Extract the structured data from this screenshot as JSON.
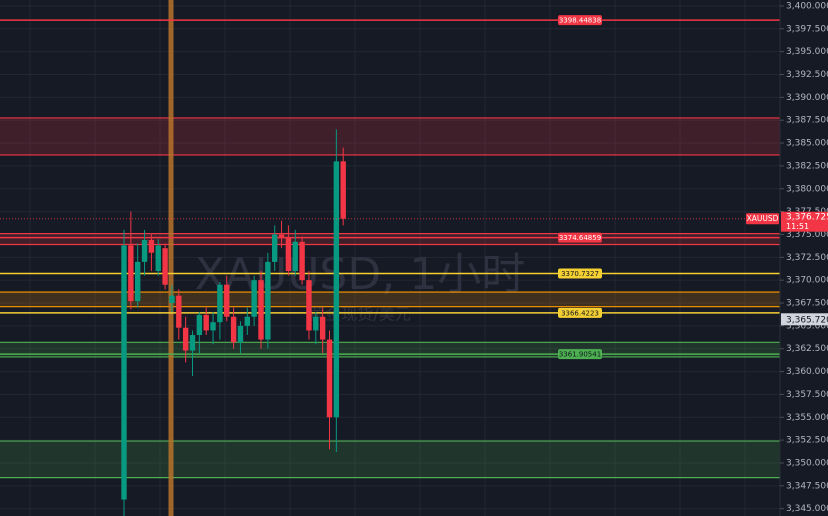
{
  "chart_data": {
    "type": "candlestick",
    "watermark": "XAUUSD, 1小时",
    "watermark_sub": "黄金现货/美元",
    "ylim": [
      3344.2,
      3400.65
    ],
    "yticks": [
      {
        "value": 3345,
        "label": "3,345.000"
      },
      {
        "value": 3347.5,
        "label": "3,347.500"
      },
      {
        "value": 3350,
        "label": "3,350.000"
      },
      {
        "value": 3352.5,
        "label": "3,352.500"
      },
      {
        "value": 3355,
        "label": "3,355.000"
      },
      {
        "value": 3357.5,
        "label": "3,357.500"
      },
      {
        "value": 3360,
        "label": "3,360.000"
      },
      {
        "value": 3362.5,
        "label": "3,362.500"
      },
      {
        "value": 3365,
        "label": "3,365.000"
      },
      {
        "value": 3367.5,
        "label": "3,367.500"
      },
      {
        "value": 3370,
        "label": "3,370.000"
      },
      {
        "value": 3372.5,
        "label": "3,372.500"
      },
      {
        "value": 3375,
        "label": "3,375.000"
      },
      {
        "value": 3377.5,
        "label": "3,377.500"
      },
      {
        "value": 3380,
        "label": "3,380.000"
      },
      {
        "value": 3382.5,
        "label": "3,382.500"
      },
      {
        "value": 3385,
        "label": "3,385.000"
      },
      {
        "value": 3387.5,
        "label": "3,387.500"
      },
      {
        "value": 3390,
        "label": "3,390.000"
      },
      {
        "value": 3392.5,
        "label": "3,392.500"
      },
      {
        "value": 3395,
        "label": "3,395.000"
      },
      {
        "value": 3397.5,
        "label": "3,397.500"
      },
      {
        "value": 3400,
        "label": "3,400.000"
      }
    ],
    "grid": true,
    "up_color": "#089981",
    "down_color": "#f23645",
    "open": [
      3346,
      3373.8,
      3367.7,
      3372,
      3374.4,
      3371,
      3373.5,
      3367.5,
      3368.3,
      3364.8,
      3362.3,
      3364,
      3366.2,
      3364.5,
      3365.4,
      3369.5,
      3366,
      3363.2,
      3365,
      3366,
      3370,
      3363.5,
      3372,
      3375,
      3374.6,
      3371,
      3374.2,
      3370,
      3364.5,
      3366,
      3363.5,
      3355,
      3383
    ],
    "high": [
      3375.5,
      3377.5,
      3374,
      3375.5,
      3375,
      3374.5,
      3374,
      3369.5,
      3369,
      3366,
      3364.5,
      3366.5,
      3367,
      3366.5,
      3369.8,
      3370.5,
      3367,
      3365.5,
      3367,
      3370.5,
      3371,
      3373,
      3376,
      3376.5,
      3376,
      3375.5,
      3374.8,
      3371,
      3366.5,
      3367,
      3364.5,
      3386.5,
      3384.5
    ],
    "low": [
      3344.2,
      3366.8,
      3367,
      3370.5,
      3371,
      3370.5,
      3369,
      3366.5,
      3363.5,
      3361,
      3359.5,
      3362,
      3364,
      3363,
      3363.5,
      3365.5,
      3362.5,
      3362,
      3364,
      3365,
      3362.5,
      3362.5,
      3371,
      3373.5,
      3370.5,
      3370.5,
      3369.5,
      3363.5,
      3363,
      3362,
      3351.5,
      3351.2,
      3376
    ],
    "close": [
      3373.8,
      3367.7,
      3372,
      3374.4,
      3373,
      3373.8,
      3369.5,
      3368.3,
      3364.8,
      3362.3,
      3364,
      3366.2,
      3364.5,
      3365.4,
      3369.5,
      3366,
      3363.2,
      3365,
      3366,
      3370,
      3363.5,
      3372,
      3375,
      3374.6,
      3371,
      3374.2,
      3370,
      3364.5,
      3366,
      3363.5,
      3355,
      3383,
      3376.725
    ],
    "zones": [
      {
        "from": 3383.7,
        "to": 3387.75,
        "color": "#f23645"
      },
      {
        "from": 3373.9,
        "to": 3375.1,
        "color": "#f23645"
      },
      {
        "from": 3367.1,
        "to": 3368.7,
        "color": "#ff9800"
      },
      {
        "from": 3361.6,
        "to": 3363.2,
        "color": "#4caf50"
      },
      {
        "from": 3348.4,
        "to": 3352.4,
        "color": "#4caf50"
      }
    ],
    "levels": [
      {
        "value": 3398.44838,
        "color": "#f23645",
        "text_color": "#ffffff"
      },
      {
        "value": 3374.64859,
        "color": "#f23645",
        "text_color": "#ffffff"
      },
      {
        "value": 3370.7327,
        "color": "#f5d033",
        "text_color": "#131722"
      },
      {
        "value": 3366.4223,
        "color": "#f5d033",
        "text_color": "#131722"
      },
      {
        "value": 3361.90541,
        "color": "#4caf50",
        "text_color": "#131722"
      }
    ],
    "last_price": {
      "value": 3376.725,
      "label": "3,376.725",
      "symbol": "XAUUSD",
      "countdown": "11:51"
    },
    "crosshair_price": {
      "value": 3365.72,
      "label": "3,365.720"
    }
  }
}
